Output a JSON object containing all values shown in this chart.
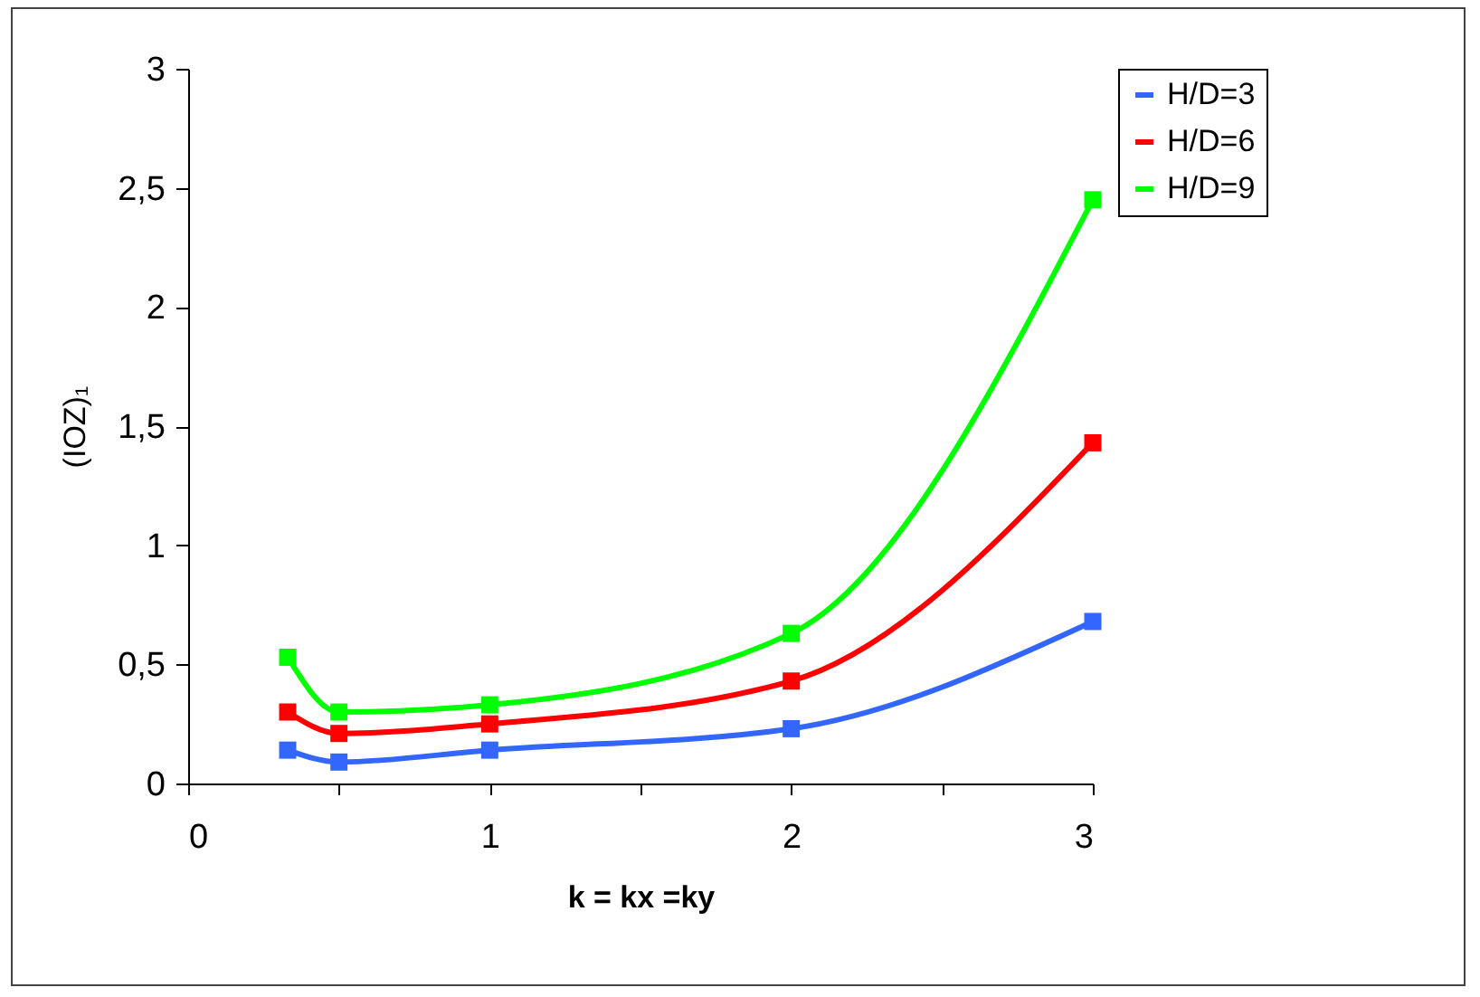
{
  "chart_data": {
    "type": "line",
    "xlabel": "k = kx =ky",
    "ylabel": "(IOZ)₁",
    "x": [
      0.33,
      0.5,
      1,
      2,
      3
    ],
    "series": [
      {
        "name": "H/D=3",
        "color": "#3366ff",
        "values": [
          0.14,
          0.09,
          0.14,
          0.23,
          0.68
        ]
      },
      {
        "name": "H/D=6",
        "color": "#ff0000",
        "values": [
          0.3,
          0.21,
          0.25,
          0.43,
          1.43
        ]
      },
      {
        "name": "H/D=9",
        "color": "#00ff00",
        "values": [
          0.53,
          0.3,
          0.33,
          0.63,
          2.45
        ]
      }
    ],
    "xlim": [
      0,
      3
    ],
    "xticks": [
      0,
      {
        "value": 0.5,
        "label": null
      },
      1,
      {
        "value": 1.5,
        "label": null
      },
      2,
      {
        "value": 2.5,
        "label": null
      },
      3
    ],
    "ylim": [
      0,
      3
    ],
    "yticks": [
      0,
      {
        "value": 0.5,
        "label": "0,5"
      },
      1,
      {
        "value": 1.5,
        "label": "1,5"
      },
      2,
      {
        "value": 2.5,
        "label": "2,5"
      },
      3
    ],
    "grid": false,
    "legend": "right",
    "marker": "square",
    "line_style": "solid"
  }
}
